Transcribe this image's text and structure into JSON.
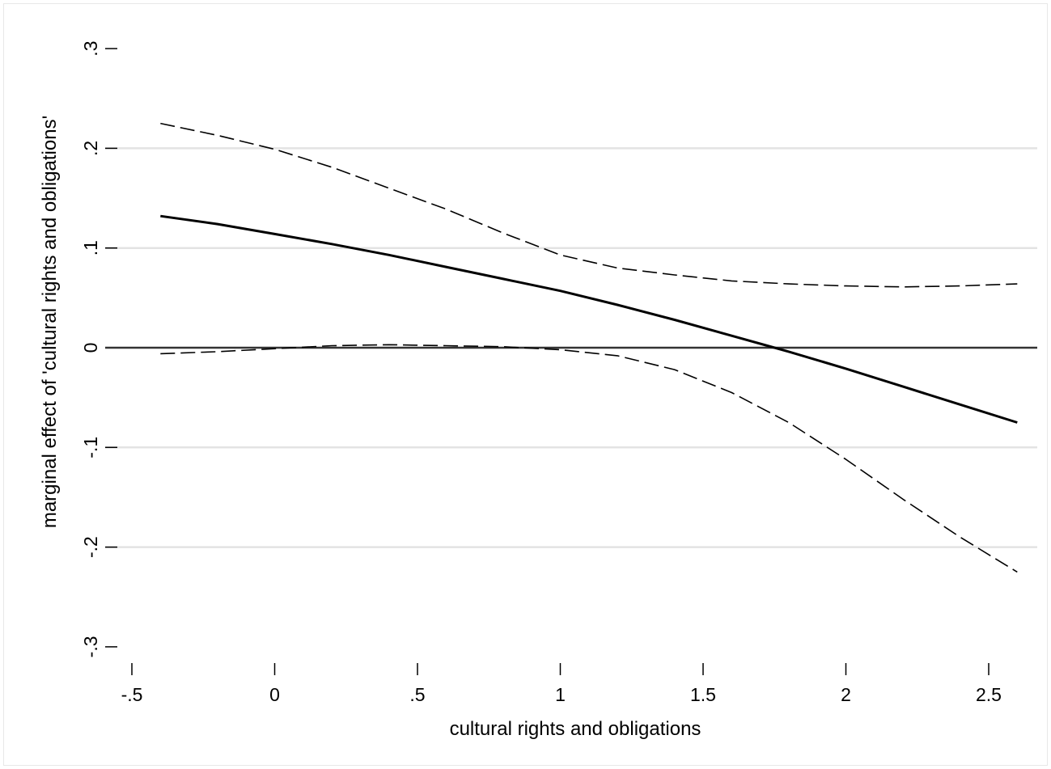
{
  "chart_data": {
    "type": "line",
    "title": "",
    "xlabel": "cultural rights and obligations",
    "ylabel": "marginal effect of 'cultural rights and obligations'",
    "xlim": [
      -0.5,
      2.62
    ],
    "ylim": [
      -0.3,
      0.3
    ],
    "x_ticks": [
      {
        "value": -0.5,
        "label": "-.5"
      },
      {
        "value": 0,
        "label": "0"
      },
      {
        "value": 0.5,
        "label": ".5"
      },
      {
        "value": 1,
        "label": "1"
      },
      {
        "value": 1.5,
        "label": "1.5"
      },
      {
        "value": 2,
        "label": "2"
      },
      {
        "value": 2.5,
        "label": "2.5"
      }
    ],
    "y_ticks": [
      {
        "value": -0.3,
        "label": "-.3"
      },
      {
        "value": -0.2,
        "label": "-.2"
      },
      {
        "value": -0.1,
        "label": "-.1"
      },
      {
        "value": 0,
        "label": "0"
      },
      {
        "value": 0.1,
        "label": ".1"
      },
      {
        "value": 0.2,
        "label": ".2"
      },
      {
        "value": 0.3,
        "label": ".3"
      }
    ],
    "grid": true,
    "reference_line_y": 0,
    "series": [
      {
        "style": "solid",
        "x": [
          -0.4,
          -0.2,
          0,
          0.2,
          0.4,
          0.6,
          0.8,
          1.0,
          1.2,
          1.4,
          1.6,
          1.75,
          1.8,
          2.0,
          2.2,
          2.4,
          2.6
        ],
        "values": [
          0.132,
          0.124,
          0.114,
          0.104,
          0.093,
          0.081,
          0.069,
          0.057,
          0.043,
          0.028,
          0.012,
          0.0,
          -0.004,
          -0.021,
          -0.039,
          -0.057,
          -0.075
        ]
      },
      {
        "style": "dashed",
        "x": [
          -0.4,
          -0.2,
          0,
          0.2,
          0.4,
          0.6,
          0.8,
          1.0,
          1.2,
          1.4,
          1.6,
          1.8,
          2.0,
          2.2,
          2.4,
          2.6
        ],
        "values": [
          0.225,
          0.213,
          0.199,
          0.181,
          0.16,
          0.139,
          0.115,
          0.093,
          0.08,
          0.073,
          0.067,
          0.064,
          0.062,
          0.061,
          0.062,
          0.064
        ]
      },
      {
        "style": "dashed",
        "x": [
          -0.4,
          -0.2,
          0,
          0.2,
          0.4,
          0.6,
          0.8,
          1.0,
          1.2,
          1.4,
          1.6,
          1.8,
          2.0,
          2.2,
          2.4,
          2.6
        ],
        "values": [
          -0.006,
          -0.004,
          -0.001,
          0.002,
          0.003,
          0.002,
          0.001,
          -0.002,
          -0.008,
          -0.022,
          -0.045,
          -0.075,
          -0.112,
          -0.152,
          -0.19,
          -0.225
        ]
      }
    ]
  }
}
